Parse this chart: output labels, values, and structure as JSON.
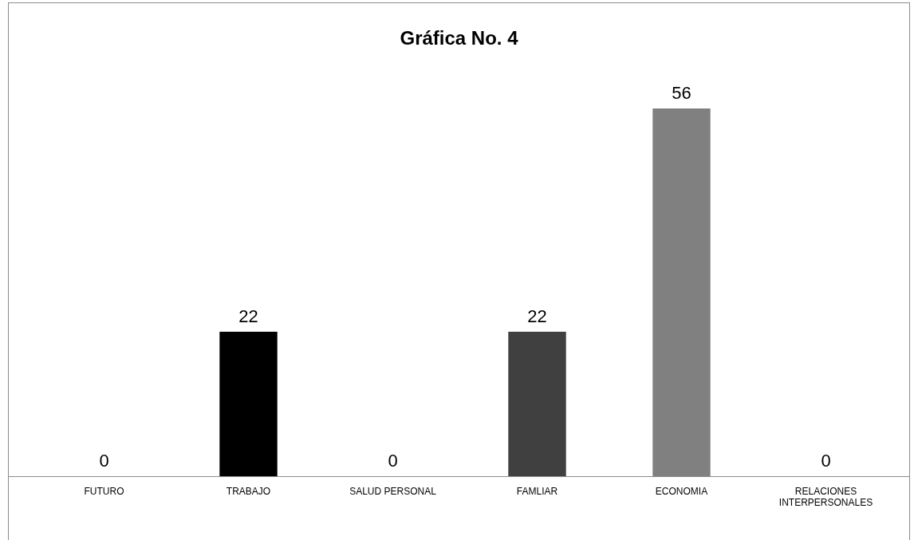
{
  "chart_data": {
    "type": "bar",
    "title": "Gráfica No. 4",
    "categories": [
      "FUTURO",
      "TRABAJO",
      "SALUD PERSONAL",
      "FAMLIAR",
      "ECONOMIA",
      "RELACIONES INTERPERSONALES"
    ],
    "values": [
      0,
      22,
      0,
      22,
      56,
      0
    ],
    "colors": [
      "#1f1f1f",
      "#000000",
      "#262626",
      "#404040",
      "#808080",
      "#a6a6a6"
    ],
    "data_labels": true
  }
}
